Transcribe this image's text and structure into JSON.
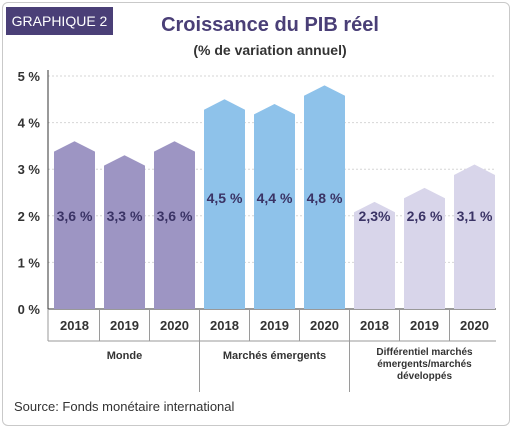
{
  "header": {
    "tag": "GRAPHIQUE 2",
    "title": "Croissance du PIB réel",
    "subtitle": "(% de variation annuel)"
  },
  "source": "Source: Fonds monétaire international",
  "colors": {
    "tag_bg": "#4a3f77",
    "title": "#4a3f77",
    "monde": "#9d95c3",
    "emergents": "#8ec2ea",
    "differentiel": "#d8d5ea"
  },
  "chart_data": {
    "type": "bar",
    "title": "Croissance du PIB réel",
    "subtitle": "(% de variation annuel)",
    "ylim": [
      0,
      5
    ],
    "yticks": [
      "0 %",
      "1 %",
      "2 %",
      "3 %",
      "4 %",
      "5 %"
    ],
    "grid": true,
    "groups": [
      {
        "name": "Monde",
        "color": "#9d95c3",
        "categories": [
          "2018",
          "2019",
          "2020"
        ],
        "values": [
          3.6,
          3.3,
          3.6
        ],
        "labels": [
          "3,6 %",
          "3,3 %",
          "3,6 %"
        ]
      },
      {
        "name": "Marchés émergents",
        "color": "#8ec2ea",
        "categories": [
          "2018",
          "2019",
          "2020"
        ],
        "values": [
          4.5,
          4.4,
          4.8
        ],
        "labels": [
          "4,5 %",
          "4,4 %",
          "4,8 %"
        ]
      },
      {
        "name_lines": [
          "Différentiel marchés",
          "émergents/marchés",
          "développés"
        ],
        "color": "#d8d5ea",
        "categories": [
          "2018",
          "2019",
          "2020"
        ],
        "values": [
          2.3,
          2.6,
          3.1
        ],
        "labels": [
          "2,3%",
          "2,6 %",
          "3,1 %"
        ]
      }
    ]
  }
}
